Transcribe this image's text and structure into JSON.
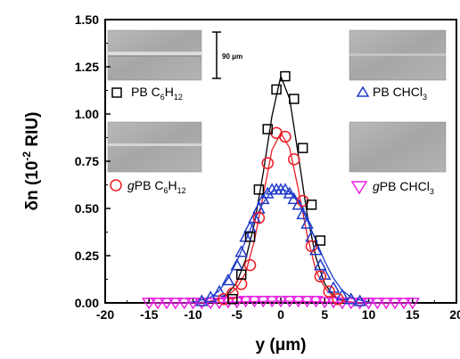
{
  "chart_data": {
    "type": "scatter",
    "xlabel": "y (μm)",
    "ylabel": "δn (10⁻² RIU)",
    "ylabel_main": "δn (10",
    "ylabel_exp": "-2",
    "ylabel_unit": " RIU)",
    "xlim": [
      -20,
      20
    ],
    "ylim": [
      0,
      1.5
    ],
    "x_ticks": [
      "-20",
      "-15",
      "-10",
      "-5",
      "0",
      "5",
      "10",
      "15",
      "20"
    ],
    "y_ticks": [
      "0.00",
      "0.25",
      "0.50",
      "0.75",
      "1.00",
      "1.25",
      "1.50"
    ],
    "scale_bar_label": "90 μm",
    "series": [
      {
        "name": "PB C6H12",
        "legend": {
          "a": "PB C",
          "b": "6",
          "c": "H",
          "d": "12"
        },
        "marker": "square",
        "color": "#000000",
        "x": [
          -5.5,
          -4.5,
          -3.5,
          -2.5,
          -1.5,
          -0.5,
          0.5,
          1.5,
          2.5,
          3.5,
          4.5
        ],
        "y": [
          0.02,
          0.15,
          0.35,
          0.6,
          0.92,
          1.13,
          1.2,
          1.08,
          0.82,
          0.52,
          0.33
        ],
        "fit_x": [
          -10,
          -8,
          -7,
          -6,
          -5,
          -4,
          -3,
          -2,
          -1,
          0,
          1,
          2,
          3,
          4,
          5,
          6,
          7,
          8,
          10
        ],
        "fit_y": [
          0,
          0.005,
          0.02,
          0.05,
          0.11,
          0.23,
          0.42,
          0.69,
          0.99,
          1.2,
          1.08,
          0.78,
          0.47,
          0.24,
          0.1,
          0.04,
          0.01,
          0.003,
          0
        ]
      },
      {
        "name": "gPB C6H12",
        "legend": {
          "a": "g",
          "b": "PB C",
          "c": "6",
          "d": "H",
          "e": "12"
        },
        "marker": "circle",
        "color": "#ee1c25",
        "x": [
          -6.5,
          -5.5,
          -4.5,
          -3.5,
          -2.5,
          -1.5,
          -0.5,
          0.5,
          1.5,
          2.5,
          3.5,
          4.5,
          5.5,
          6.5
        ],
        "y": [
          0.02,
          0.05,
          0.1,
          0.2,
          0.45,
          0.74,
          0.9,
          0.88,
          0.76,
          0.54,
          0.3,
          0.14,
          0.06,
          0.02
        ],
        "fit_x": [
          -9,
          -8,
          -7,
          -6,
          -5,
          -4,
          -3,
          -2,
          -1,
          0,
          1,
          2,
          3,
          4,
          5,
          6,
          7,
          8,
          9
        ],
        "fit_y": [
          0,
          0.01,
          0.02,
          0.04,
          0.08,
          0.16,
          0.33,
          0.57,
          0.81,
          0.9,
          0.82,
          0.6,
          0.36,
          0.17,
          0.08,
          0.03,
          0.01,
          0.005,
          0
        ]
      },
      {
        "name": "PB CHCl3",
        "legend": {
          "a": "PB CHCl",
          "b": "3"
        },
        "marker": "triangle-up",
        "color": "#1f3bc9",
        "x": [
          -9,
          -8,
          -7,
          -6,
          -5,
          -4.5,
          -4,
          -3.5,
          -3,
          -2.5,
          -2,
          -1.5,
          -1,
          -0.5,
          0,
          0.5,
          1,
          1.5,
          2,
          2.5,
          3,
          3.5,
          4,
          4.5,
          5,
          6,
          7,
          8,
          9
        ],
        "y": [
          0.01,
          0.03,
          0.06,
          0.12,
          0.2,
          0.27,
          0.35,
          0.4,
          0.45,
          0.5,
          0.55,
          0.58,
          0.6,
          0.6,
          0.6,
          0.6,
          0.58,
          0.55,
          0.52,
          0.47,
          0.42,
          0.35,
          0.28,
          0.2,
          0.15,
          0.08,
          0.04,
          0.02,
          0.01
        ],
        "fit_x": [
          -11,
          -10,
          -9,
          -8,
          -7,
          -6,
          -5,
          -4,
          -3,
          -2,
          -1,
          0,
          1,
          2,
          3,
          4,
          5,
          6,
          7,
          8,
          9,
          10,
          11
        ],
        "fit_y": [
          0,
          0.005,
          0.015,
          0.03,
          0.065,
          0.13,
          0.22,
          0.33,
          0.44,
          0.53,
          0.59,
          0.6,
          0.59,
          0.53,
          0.44,
          0.33,
          0.22,
          0.13,
          0.065,
          0.03,
          0.015,
          0.005,
          0
        ]
      },
      {
        "name": "gPB CHCl3",
        "legend": {
          "a": "g",
          "b": "PB CHCl",
          "c": "3"
        },
        "marker": "triangle-down",
        "color": "#e81fe0",
        "x": [
          -15,
          -14,
          -13,
          -12,
          -11,
          -10,
          -9,
          -8,
          -7,
          -6,
          -5,
          -4,
          -3,
          -2,
          -1,
          0,
          1,
          2,
          3,
          4,
          5,
          6,
          7,
          8,
          9,
          10,
          11,
          12,
          13,
          14,
          15
        ],
        "y": [
          0,
          0,
          0,
          0,
          0,
          0,
          0,
          0,
          0,
          0.005,
          0.005,
          0.01,
          0.01,
          0.01,
          0.01,
          0.01,
          0.01,
          0.01,
          0.01,
          0.01,
          0.005,
          0.005,
          0,
          0,
          0,
          0,
          0,
          0,
          0,
          0,
          0
        ],
        "fit_x": [
          -15,
          -10,
          -5,
          0,
          5,
          10,
          15
        ],
        "fit_y": [
          0,
          0,
          0.005,
          0.01,
          0.005,
          0,
          0
        ]
      }
    ]
  }
}
